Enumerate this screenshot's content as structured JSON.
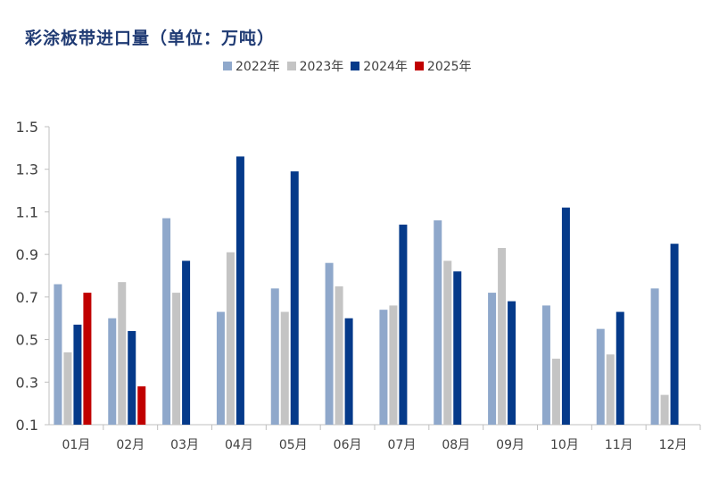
{
  "title": "彩涂板带进口量（单位：万吨）",
  "chart_data": {
    "type": "bar",
    "title": "彩涂板带进口量（单位：万吨）",
    "categories": [
      "01月",
      "02月",
      "03月",
      "04月",
      "05月",
      "06月",
      "07月",
      "08月",
      "09月",
      "10月",
      "11月",
      "12月"
    ],
    "series": [
      {
        "name": "2022年",
        "color": "#8fa8cb",
        "values": [
          0.76,
          0.6,
          1.07,
          0.63,
          0.74,
          0.86,
          0.64,
          1.06,
          0.72,
          0.66,
          0.55,
          0.74
        ]
      },
      {
        "name": "2023年",
        "color": "#c4c4c4",
        "values": [
          0.44,
          0.77,
          0.72,
          0.91,
          0.63,
          0.75,
          0.66,
          0.87,
          0.93,
          0.41,
          0.43,
          0.24
        ]
      },
      {
        "name": "2024年",
        "color": "#053a8a",
        "values": [
          0.57,
          0.54,
          0.87,
          1.36,
          1.29,
          0.6,
          1.04,
          0.82,
          0.68,
          1.12,
          0.63,
          0.95
        ]
      },
      {
        "name": "2025年",
        "color": "#c00000",
        "values": [
          0.72,
          0.28,
          null,
          null,
          null,
          null,
          null,
          null,
          null,
          null,
          null,
          null
        ]
      }
    ],
    "yticks": [
      "1.5",
      "1.3",
      "1.1",
      "0.9",
      "0.7",
      "0.5",
      "0.3",
      "0.1"
    ],
    "ylim": [
      0.1,
      1.5
    ],
    "legend": "top",
    "grid": false
  }
}
